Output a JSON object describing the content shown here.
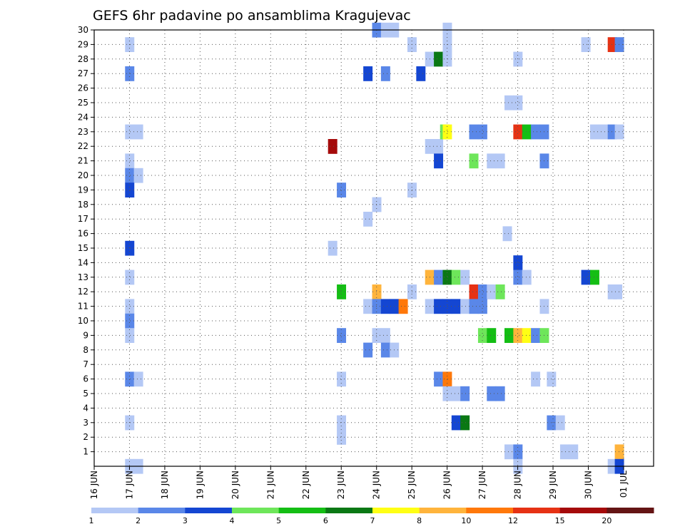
{
  "chart_data": {
    "type": "heatmap",
    "title": "GEFS 6hr padavine po ansamblima Kragujevac",
    "xlabel": "",
    "ylabel": "",
    "x_ticks": [
      "16 JUN",
      "17 JUN",
      "18 JUN",
      "19 JUN",
      "20 JUN",
      "21 JUN",
      "22 JUN",
      "23 JUN",
      "24 JUN",
      "25 JUN",
      "26 JUN",
      "27 JUN",
      "28 JUN",
      "29 JUN",
      "30 JUN",
      "01 JUL"
    ],
    "y_ticks": [
      1,
      2,
      3,
      4,
      5,
      6,
      7,
      8,
      9,
      10,
      11,
      12,
      13,
      14,
      15,
      16,
      17,
      18,
      19,
      20,
      21,
      22,
      23,
      24,
      25,
      26,
      27,
      28,
      29,
      30
    ],
    "ylim": [
      0,
      30
    ],
    "grid": true,
    "colorbar": {
      "labels": [
        "1",
        "2",
        "3",
        "4",
        "5",
        "6",
        "7",
        "8",
        "10",
        "12",
        "15",
        "20"
      ],
      "colors": [
        "#b4c8f5",
        "#5a87e8",
        "#1446d2",
        "#6ee65a",
        "#14be14",
        "#0a7814",
        "#ffff14",
        "#ffb43c",
        "#ff780a",
        "#e63214",
        "#a50a0a",
        "#641414"
      ]
    },
    "cells": [
      {
        "t": "17 JUN",
        "m": 0,
        "v": 1
      },
      {
        "t": "17 JUN",
        "m": 29,
        "v": 1
      },
      {
        "t": "17 JUN",
        "m": 27,
        "v": 2
      },
      {
        "t": "17 JUN",
        "m": 23,
        "v": 1
      },
      {
        "t": "17 JUN",
        "m": 23,
        "v": 1,
        "o": 1
      },
      {
        "t": "17 JUN",
        "m": 21,
        "v": 1
      },
      {
        "t": "17 JUN",
        "m": 20,
        "v": 2
      },
      {
        "t": "17 JUN",
        "m": 20,
        "v": 1,
        "o": 1
      },
      {
        "t": "17 JUN",
        "m": 19,
        "v": 3
      },
      {
        "t": "17 JUN",
        "m": 15,
        "v": 3
      },
      {
        "t": "17 JUN",
        "m": 13,
        "v": 1
      },
      {
        "t": "17 JUN",
        "m": 11,
        "v": 1
      },
      {
        "t": "17 JUN",
        "m": 10,
        "v": 2
      },
      {
        "t": "17 JUN",
        "m": 9,
        "v": 1
      },
      {
        "t": "17 JUN",
        "m": 6,
        "v": 2
      },
      {
        "t": "17 JUN",
        "m": 6,
        "v": 1,
        "o": 1
      },
      {
        "t": "17 JUN",
        "m": 3,
        "v": 1
      },
      {
        "t": "17 JUN",
        "m": 0,
        "v": 1,
        "o": 1
      },
      {
        "t": "22 JUN",
        "m": 22,
        "v": 15,
        "o": 3
      },
      {
        "t": "23 JUN",
        "m": 19,
        "v": 2
      },
      {
        "t": "23 JUN",
        "m": 15,
        "v": 1,
        "o": -1
      },
      {
        "t": "23 JUN",
        "m": 12,
        "v": 5
      },
      {
        "t": "23 JUN",
        "m": 9,
        "v": 2
      },
      {
        "t": "23 JUN",
        "m": 6,
        "v": 1
      },
      {
        "t": "23 JUN",
        "m": 3,
        "v": 1
      },
      {
        "t": "23 JUN",
        "m": 2,
        "v": 1
      },
      {
        "t": "23 JUN",
        "m": 17,
        "v": 1,
        "o": 3
      },
      {
        "t": "23 JUN",
        "m": 18,
        "v": 1,
        "o": 4
      },
      {
        "t": "23 JUN",
        "m": 12,
        "v": 8,
        "o": 4
      },
      {
        "t": "23 JUN",
        "m": 9,
        "v": 1,
        "o": 4
      },
      {
        "t": "23 JUN",
        "m": 9,
        "v": 1,
        "o": 5
      },
      {
        "t": "24 JUN",
        "m": 30,
        "v": 2
      },
      {
        "t": "24 JUN",
        "m": 30,
        "v": 1,
        "o": 1
      },
      {
        "t": "24 JUN",
        "m": 30,
        "v": 1,
        "o": 2
      },
      {
        "t": "24 JUN",
        "m": 27,
        "v": 3,
        "o": -1
      },
      {
        "t": "24 JUN",
        "m": 27,
        "v": 2,
        "o": 1
      },
      {
        "t": "24 JUN",
        "m": 11,
        "v": 1,
        "o": -1
      },
      {
        "t": "24 JUN",
        "m": 11,
        "v": 2
      },
      {
        "t": "24 JUN",
        "m": 11,
        "v": 3,
        "o": 1
      },
      {
        "t": "24 JUN",
        "m": 11,
        "v": 3,
        "o": 2
      },
      {
        "t": "24 JUN",
        "m": 11,
        "v": 10,
        "o": 3
      },
      {
        "t": "24 JUN",
        "m": 8,
        "v": 2,
        "o": -1
      },
      {
        "t": "24 JUN",
        "m": 8,
        "v": 2,
        "o": 1
      },
      {
        "t": "24 JUN",
        "m": 8,
        "v": 1,
        "o": 2
      },
      {
        "t": "25 JUN",
        "m": 29,
        "v": 1
      },
      {
        "t": "25 JUN",
        "m": 27,
        "v": 3,
        "o": 1
      },
      {
        "t": "25 JUN",
        "m": 28,
        "v": 1,
        "o": 2
      },
      {
        "t": "25 JUN",
        "m": 19,
        "v": 1
      },
      {
        "t": "25 JUN",
        "m": 12,
        "v": 1
      },
      {
        "t": "25 JUN",
        "m": 22,
        "v": 1,
        "o": 2
      },
      {
        "t": "25 JUN",
        "m": 22,
        "v": 1,
        "o": 3
      },
      {
        "t": "25 JUN",
        "m": 13,
        "v": 8,
        "o": 2
      },
      {
        "t": "25 JUN",
        "m": 11,
        "v": 1,
        "o": 2
      },
      {
        "t": "26 JUN",
        "m": 30,
        "v": 1
      },
      {
        "t": "26 JUN",
        "m": 29,
        "v": 1
      },
      {
        "t": "26 JUN",
        "m": 28,
        "v": 6,
        "o": -1
      },
      {
        "t": "26 JUN",
        "m": 28,
        "v": 1
      },
      {
        "t": "26 JUN",
        "m": 23,
        "v": 4,
        "o": -0.3
      },
      {
        "t": "26 JUN",
        "m": 23,
        "v": 7
      },
      {
        "t": "26 JUN",
        "m": 21,
        "v": 3,
        "o": -1
      },
      {
        "t": "26 JUN",
        "m": 13,
        "v": 2,
        "o": -1
      },
      {
        "t": "26 JUN",
        "m": 13,
        "v": 6
      },
      {
        "t": "26 JUN",
        "m": 13,
        "v": 4,
        "o": 1
      },
      {
        "t": "26 JUN",
        "m": 13,
        "v": 1,
        "o": 2
      },
      {
        "t": "26 JUN",
        "m": 11,
        "v": 3,
        "o": -1
      },
      {
        "t": "26 JUN",
        "m": 11,
        "v": 3
      },
      {
        "t": "26 JUN",
        "m": 11,
        "v": 3,
        "o": 1
      },
      {
        "t": "26 JUN",
        "m": 11,
        "v": 1,
        "o": 2
      },
      {
        "t": "26 JUN",
        "m": 6,
        "v": 2,
        "o": -1
      },
      {
        "t": "26 JUN",
        "m": 6,
        "v": 10
      },
      {
        "t": "26 JUN",
        "m": 5,
        "v": 1
      },
      {
        "t": "26 JUN",
        "m": 5,
        "v": 1,
        "o": 1
      },
      {
        "t": "26 JUN",
        "m": 5,
        "v": 2,
        "o": 2
      },
      {
        "t": "26 JUN",
        "m": 3,
        "v": 3,
        "o": 1
      },
      {
        "t": "26 JUN",
        "m": 3,
        "v": 6,
        "o": 2
      },
      {
        "t": "27 JUN",
        "m": 23,
        "v": 2,
        "o": -1
      },
      {
        "t": "27 JUN",
        "m": 23,
        "v": 2
      },
      {
        "t": "27 JUN",
        "m": 21,
        "v": 4,
        "o": -1
      },
      {
        "t": "27 JUN",
        "m": 21,
        "v": 1,
        "o": 1
      },
      {
        "t": "27 JUN",
        "m": 21,
        "v": 1,
        "o": 2
      },
      {
        "t": "27 JUN",
        "m": 12,
        "v": 12,
        "o": -1
      },
      {
        "t": "27 JUN",
        "m": 12,
        "v": 2
      },
      {
        "t": "27 JUN",
        "m": 12,
        "v": 1,
        "o": 1
      },
      {
        "t": "27 JUN",
        "m": 12,
        "v": 4,
        "o": 2
      },
      {
        "t": "27 JUN",
        "m": 11,
        "v": 2,
        "o": -1
      },
      {
        "t": "27 JUN",
        "m": 11,
        "v": 2
      },
      {
        "t": "27 JUN",
        "m": 9,
        "v": 4
      },
      {
        "t": "27 JUN",
        "m": 9,
        "v": 5,
        "o": 1
      },
      {
        "t": "27 JUN",
        "m": 5,
        "v": 2,
        "o": 1
      },
      {
        "t": "27 JUN",
        "m": 5,
        "v": 2,
        "o": 2
      },
      {
        "t": "28 JUN",
        "m": 28,
        "v": 1
      },
      {
        "t": "28 JUN",
        "m": 25,
        "v": 1,
        "o": -1
      },
      {
        "t": "28 JUN",
        "m": 25,
        "v": 1
      },
      {
        "t": "28 JUN",
        "m": 23,
        "v": 12
      },
      {
        "t": "28 JUN",
        "m": 23,
        "v": 5,
        "o": 1
      },
      {
        "t": "28 JUN",
        "m": 23,
        "v": 2,
        "o": 2
      },
      {
        "t": "28 JUN",
        "m": 23,
        "v": 2,
        "o": 3
      },
      {
        "t": "28 JUN",
        "m": 16,
        "v": 1,
        "o": -1.2
      },
      {
        "t": "28 JUN",
        "m": 14,
        "v": 3
      },
      {
        "t": "28 JUN",
        "m": 13,
        "v": 2
      },
      {
        "t": "28 JUN",
        "m": 13,
        "v": 1,
        "o": 1
      },
      {
        "t": "28 JUN",
        "m": 9,
        "v": 5,
        "o": -1
      },
      {
        "t": "28 JUN",
        "m": 9,
        "v": 8
      },
      {
        "t": "28 JUN",
        "m": 9,
        "v": 7,
        "o": 1
      },
      {
        "t": "28 JUN",
        "m": 9,
        "v": 2,
        "o": 2
      },
      {
        "t": "28 JUN",
        "m": 9,
        "v": 4,
        "o": 3
      },
      {
        "t": "28 JUN",
        "m": 6,
        "v": 1,
        "o": 2
      },
      {
        "t": "28 JUN",
        "m": 1,
        "v": 1,
        "o": -1
      },
      {
        "t": "28 JUN",
        "m": 1,
        "v": 2
      },
      {
        "t": "28 JUN",
        "m": 0,
        "v": 1
      },
      {
        "t": "28 JUN",
        "m": 21,
        "v": 2,
        "o": 3
      },
      {
        "t": "28 JUN",
        "m": 11,
        "v": 1,
        "o": 3
      },
      {
        "t": "29 JUN",
        "m": 6,
        "v": 1,
        "o": -0.2
      },
      {
        "t": "29 JUN",
        "m": 3,
        "v": 2,
        "o": -0.2
      },
      {
        "t": "29 JUN",
        "m": 3,
        "v": 1,
        "o": 0.8
      },
      {
        "t": "29 JUN",
        "m": 1,
        "v": 1,
        "o": 1.3
      },
      {
        "t": "29 JUN",
        "m": 1,
        "v": 1,
        "o": 2.3
      },
      {
        "t": "30 JUN",
        "m": 29,
        "v": 1,
        "o": -0.3
      },
      {
        "t": "30 JUN",
        "m": 13,
        "v": 3,
        "o": -0.3
      },
      {
        "t": "30 JUN",
        "m": 13,
        "v": 5,
        "o": 0.7
      },
      {
        "t": "30 JUN",
        "m": 23,
        "v": 1,
        "o": 0.7
      },
      {
        "t": "30 JUN",
        "m": 23,
        "v": 1,
        "o": 1.7
      },
      {
        "t": "30 JUN",
        "m": 23,
        "v": 2,
        "o": 2.7
      },
      {
        "t": "30 JUN",
        "m": 23,
        "v": 1,
        "o": 3.5
      },
      {
        "t": "30 JUN",
        "m": 29,
        "v": 12,
        "o": 2.7
      },
      {
        "t": "30 JUN",
        "m": 29,
        "v": 2,
        "o": 3.5
      },
      {
        "t": "30 JUN",
        "m": 12,
        "v": 1,
        "o": 2.7
      },
      {
        "t": "30 JUN",
        "m": 12,
        "v": 1,
        "o": 3.3
      },
      {
        "t": "30 JUN",
        "m": 1,
        "v": 8,
        "o": 3.5
      },
      {
        "t": "30 JUN",
        "m": 0,
        "v": 1,
        "o": 2.7
      },
      {
        "t": "30 JUN",
        "m": 0,
        "v": 3,
        "o": 3.5
      }
    ]
  }
}
